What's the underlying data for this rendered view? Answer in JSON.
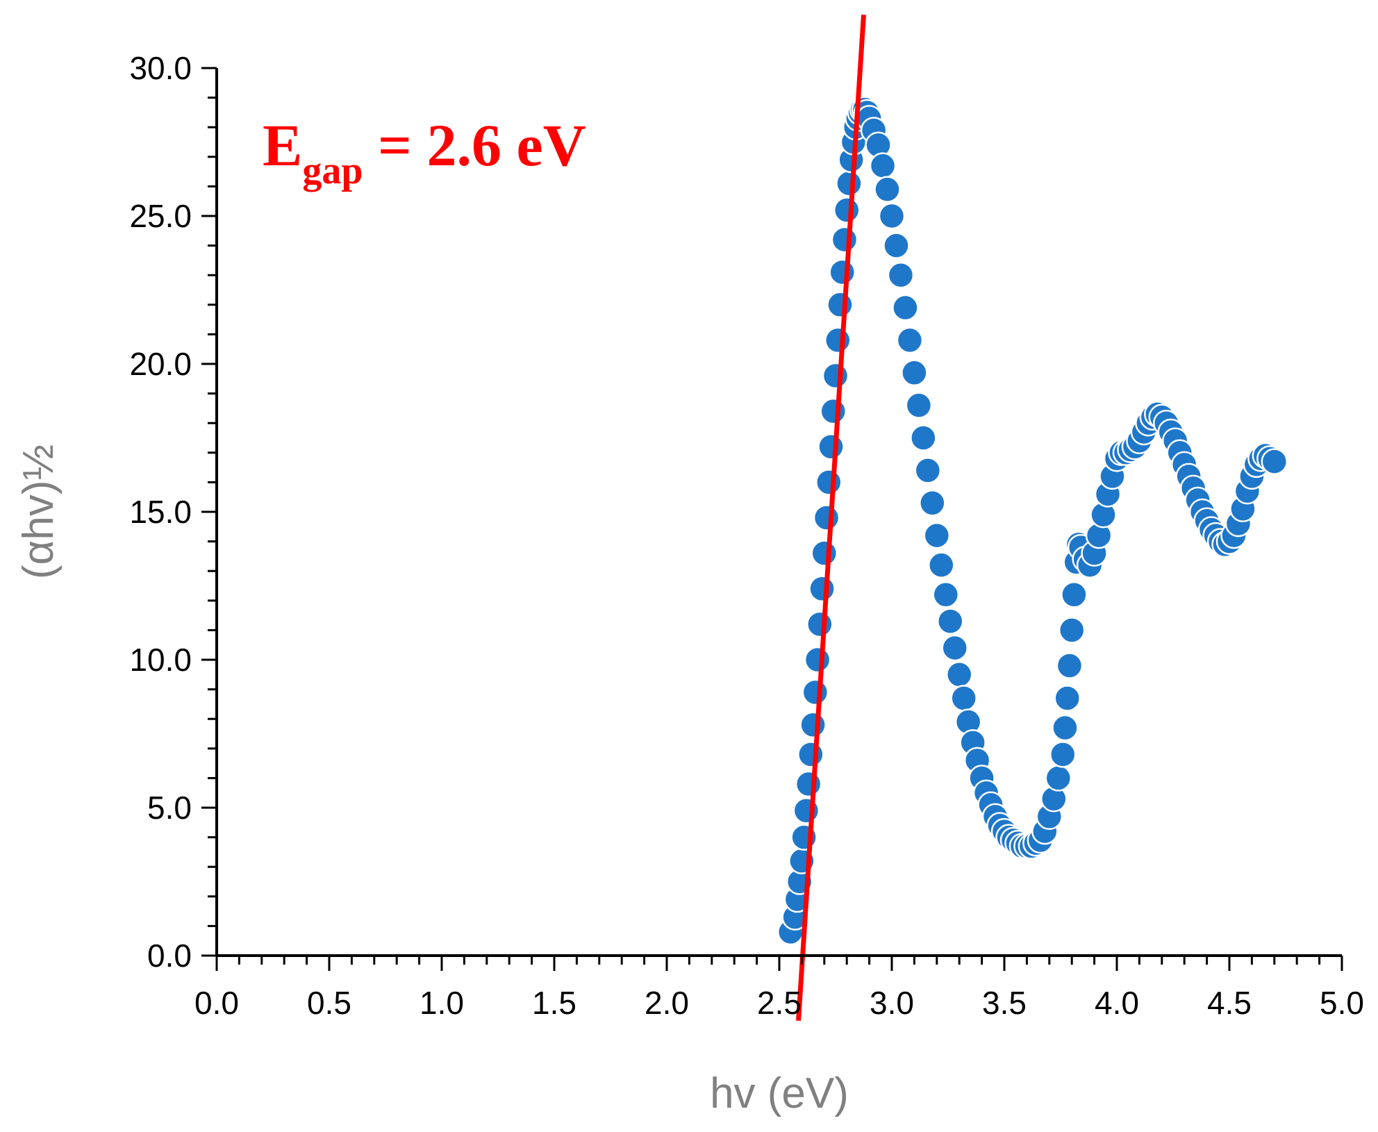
{
  "chart_data": {
    "type": "scatter",
    "xlabel": "hv (eV)",
    "ylabel": "(αhv)½",
    "xlim": [
      0.0,
      5.0
    ],
    "ylim": [
      0.0,
      30.0
    ],
    "x_ticks": [
      "0.0",
      "0.5",
      "1.0",
      "1.5",
      "2.0",
      "2.5",
      "3.0",
      "3.5",
      "4.0",
      "4.5",
      "5.0"
    ],
    "y_ticks": [
      "0.0",
      "5.0",
      "10.0",
      "15.0",
      "20.0",
      "25.0",
      "30.0"
    ],
    "x_minor_step": 0.1,
    "y_minor_step": 1.0,
    "grid": false,
    "marker_color": "#1f77c9",
    "series": [
      {
        "x": [
          2.55,
          2.57,
          2.58,
          2.59,
          2.6,
          2.61,
          2.62,
          2.63,
          2.64,
          2.65,
          2.66,
          2.67,
          2.68,
          2.69,
          2.7,
          2.71,
          2.72,
          2.73,
          2.74,
          2.75,
          2.76,
          2.77,
          2.78,
          2.79,
          2.8,
          2.81,
          2.82,
          2.83,
          2.84,
          2.85,
          2.86,
          2.87,
          2.88,
          2.89,
          2.9,
          2.92,
          2.94,
          2.96,
          2.98,
          3.0,
          3.02,
          3.04,
          3.06,
          3.08,
          3.1,
          3.12,
          3.14,
          3.16,
          3.18,
          3.2,
          3.22,
          3.24,
          3.26,
          3.28,
          3.3,
          3.32,
          3.34,
          3.36,
          3.38,
          3.4,
          3.42,
          3.44,
          3.46,
          3.48,
          3.5,
          3.52,
          3.54,
          3.56,
          3.58,
          3.6,
          3.62,
          3.64,
          3.66,
          3.68,
          3.7,
          3.72,
          3.74,
          3.76,
          3.77,
          3.78,
          3.79,
          3.8,
          3.81,
          3.82,
          3.83,
          3.84,
          3.86,
          3.88,
          3.9,
          3.92,
          3.94,
          3.96,
          3.98,
          4.0,
          4.02,
          4.04,
          4.06,
          4.08,
          4.1,
          4.12,
          4.14,
          4.16,
          4.18,
          4.2,
          4.22,
          4.24,
          4.26,
          4.28,
          4.3,
          4.32,
          4.34,
          4.36,
          4.38,
          4.4,
          4.42,
          4.44,
          4.46,
          4.48,
          4.5,
          4.52,
          4.54,
          4.56,
          4.58,
          4.6,
          4.62,
          4.64,
          4.66,
          4.68,
          4.7
        ],
        "y": [
          0.8,
          1.3,
          1.9,
          2.5,
          3.2,
          4.0,
          4.9,
          5.8,
          6.8,
          7.8,
          8.9,
          10.0,
          11.2,
          12.4,
          13.6,
          14.8,
          16.0,
          17.2,
          18.4,
          19.6,
          20.8,
          22.0,
          23.1,
          24.2,
          25.2,
          26.1,
          26.9,
          27.5,
          28.0,
          28.3,
          28.5,
          28.6,
          28.6,
          28.5,
          28.3,
          27.9,
          27.4,
          26.7,
          25.9,
          25.0,
          24.0,
          23.0,
          21.9,
          20.8,
          19.7,
          18.6,
          17.5,
          16.4,
          15.3,
          14.2,
          13.2,
          12.2,
          11.3,
          10.4,
          9.5,
          8.7,
          7.9,
          7.2,
          6.6,
          6.0,
          5.5,
          5.1,
          4.7,
          4.4,
          4.2,
          4.0,
          3.9,
          3.8,
          3.7,
          3.7,
          3.7,
          3.8,
          3.9,
          4.2,
          4.7,
          5.3,
          6.0,
          6.8,
          7.7,
          8.7,
          9.8,
          11.0,
          12.2,
          13.3,
          13.9,
          13.8,
          13.4,
          13.2,
          13.6,
          14.2,
          14.9,
          15.6,
          16.2,
          16.8,
          17.0,
          17.0,
          17.1,
          17.2,
          17.4,
          17.7,
          18.0,
          18.2,
          18.3,
          18.2,
          18.0,
          17.7,
          17.4,
          17.0,
          16.6,
          16.2,
          15.8,
          15.4,
          15.0,
          14.7,
          14.4,
          14.2,
          14.0,
          13.9,
          14.0,
          14.2,
          14.6,
          15.1,
          15.7,
          16.2,
          16.6,
          16.8,
          16.9,
          16.8,
          16.7
        ]
      }
    ],
    "fit_line": {
      "x": [
        2.585,
        2.875
      ],
      "y": [
        -2.2,
        31.8
      ],
      "color": "#ff0000"
    },
    "annotation": {
      "main": "E",
      "subscript": "gap",
      "rest": " = 2.6 eV",
      "color": "#ff0000"
    }
  }
}
